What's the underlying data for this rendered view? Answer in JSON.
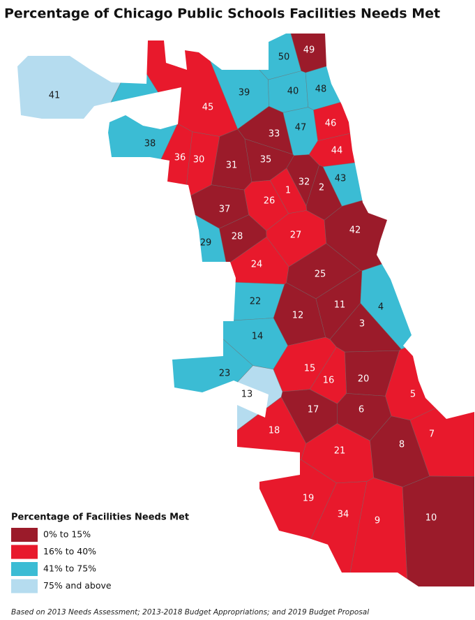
{
  "title": "Percentage of Chicago Public Schools Facilities Needs Met",
  "legend": {
    "title": "Percentage of Facilities Needs Met",
    "items": [
      {
        "label": "0% to 15%",
        "color": "#9b1b2a"
      },
      {
        "label": "16% to 40%",
        "color": "#e8192c"
      },
      {
        "label": "41% to 75%",
        "color": "#3bbcd4"
      },
      {
        "label": "75% and above",
        "color": "#b5dcef"
      }
    ]
  },
  "wards": [
    {
      "label": "41",
      "color": "#b5dcef"
    },
    {
      "label": "50",
      "color": "#3bbcd4"
    },
    {
      "label": "49",
      "color": "#9b1b2a"
    },
    {
      "label": "39",
      "color": "#3bbcd4"
    },
    {
      "label": "40",
      "color": "#3bbcd4"
    },
    {
      "label": "48",
      "color": "#3bbcd4"
    },
    {
      "label": "45",
      "color": "#e8192c"
    },
    {
      "label": "46",
      "color": "#e8192c"
    },
    {
      "label": "47",
      "color": "#3bbcd4"
    },
    {
      "label": "33",
      "color": "#9b1b2a"
    },
    {
      "label": "38",
      "color": "#3bbcd4"
    },
    {
      "label": "44",
      "color": "#e8192c"
    },
    {
      "label": "36",
      "color": "#e8192c"
    },
    {
      "label": "30",
      "color": "#e8192c"
    },
    {
      "label": "31",
      "color": "#9b1b2a"
    },
    {
      "label": "35",
      "color": "#9b1b2a"
    },
    {
      "label": "32",
      "color": "#9b1b2a"
    },
    {
      "label": "2",
      "color": "#9b1b2a"
    },
    {
      "label": "43",
      "color": "#3bbcd4"
    },
    {
      "label": "1",
      "color": "#e8192c"
    },
    {
      "label": "26",
      "color": "#e8192c"
    },
    {
      "label": "37",
      "color": "#9b1b2a"
    },
    {
      "label": "28",
      "color": "#9b1b2a"
    },
    {
      "label": "27",
      "color": "#e8192c"
    },
    {
      "label": "42",
      "color": "#9b1b2a"
    },
    {
      "label": "29",
      "color": "#3bbcd4"
    },
    {
      "label": "24",
      "color": "#e8192c"
    },
    {
      "label": "25",
      "color": "#9b1b2a"
    },
    {
      "label": "22",
      "color": "#3bbcd4"
    },
    {
      "label": "11",
      "color": "#9b1b2a"
    },
    {
      "label": "4",
      "color": "#3bbcd4"
    },
    {
      "label": "12",
      "color": "#9b1b2a"
    },
    {
      "label": "3",
      "color": "#9b1b2a"
    },
    {
      "label": "14",
      "color": "#3bbcd4"
    },
    {
      "label": "23",
      "color": "#3bbcd4"
    },
    {
      "label": "15",
      "color": "#e8192c"
    },
    {
      "label": "16",
      "color": "#e8192c"
    },
    {
      "label": "20",
      "color": "#9b1b2a"
    },
    {
      "label": "13",
      "color": "#b5dcef"
    },
    {
      "label": "5",
      "color": "#e8192c"
    },
    {
      "label": "17",
      "color": "#9b1b2a"
    },
    {
      "label": "6",
      "color": "#9b1b2a"
    },
    {
      "label": "18",
      "color": "#e8192c"
    },
    {
      "label": "7",
      "color": "#e8192c"
    },
    {
      "label": "8",
      "color": "#9b1b2a"
    },
    {
      "label": "21",
      "color": "#e8192c"
    },
    {
      "label": "19",
      "color": "#e8192c"
    },
    {
      "label": "34",
      "color": "#e8192c"
    },
    {
      "label": "9",
      "color": "#e8192c"
    },
    {
      "label": "10",
      "color": "#9b1b2a"
    }
  ],
  "footnote": "Based on 2013 Needs Assessment; 2013-2018 Budget Appropriations; and 2019 Budget Proposal"
}
